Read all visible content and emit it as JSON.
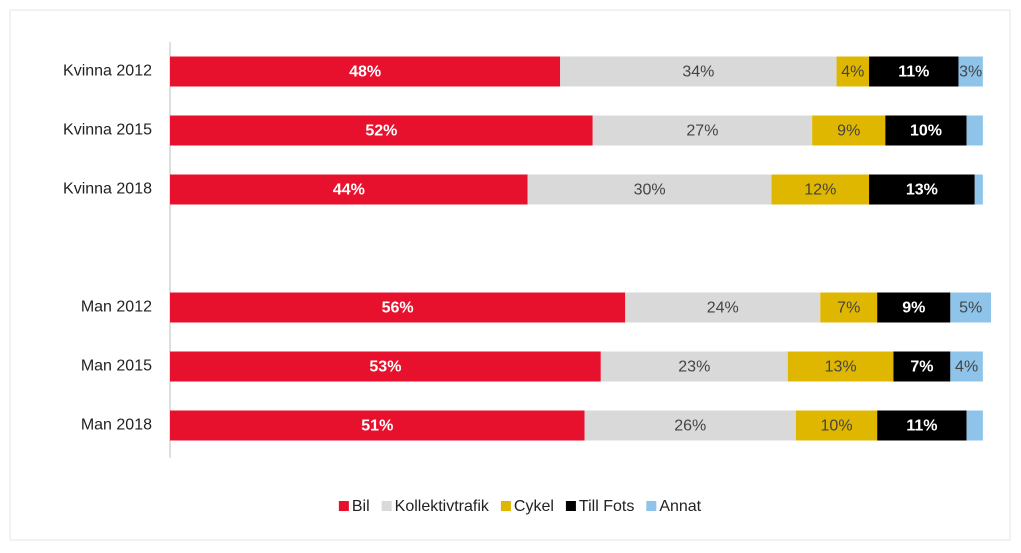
{
  "chart_data": {
    "type": "stacked-bar-horizontal",
    "categories": [
      "Kvinna 2012",
      "Kvinna 2015",
      "Kvinna 2018",
      null,
      "Man 2012",
      "Man 2015",
      "Man 2018"
    ],
    "series": [
      {
        "name": "Bil",
        "color": "#e8112d",
        "values": [
          48,
          52,
          44,
          null,
          56,
          53,
          51
        ],
        "value_labels": [
          "48%",
          "52%",
          "44%",
          null,
          "56%",
          "53%",
          "51%"
        ]
      },
      {
        "name": "Kollektivtrafik",
        "color": "#d9d9d9",
        "values": [
          34,
          27,
          30,
          null,
          24,
          23,
          26
        ],
        "value_labels": [
          "34%",
          "27%",
          "30%",
          null,
          "24%",
          "23%",
          "26%"
        ]
      },
      {
        "name": "Cykel",
        "color": "#dfb700",
        "values": [
          4,
          9,
          12,
          null,
          7,
          13,
          10
        ],
        "value_labels": [
          "4%",
          "9%",
          "12%",
          null,
          "7%",
          "13%",
          "10%"
        ]
      },
      {
        "name": "Till Fots",
        "color": "#000000",
        "values": [
          11,
          10,
          13,
          null,
          9,
          7,
          11
        ],
        "value_labels": [
          "11%",
          "10%",
          "13%",
          null,
          "9%",
          "7%",
          "11%"
        ]
      },
      {
        "name": "Annat",
        "color": "#8fc4ea",
        "values": [
          3,
          2,
          1,
          null,
          5,
          4,
          2
        ],
        "value_labels": [
          "3%",
          null,
          null,
          null,
          "5%",
          "4%",
          null
        ]
      }
    ],
    "xlim": [
      0,
      101
    ],
    "legend": "bottom"
  }
}
